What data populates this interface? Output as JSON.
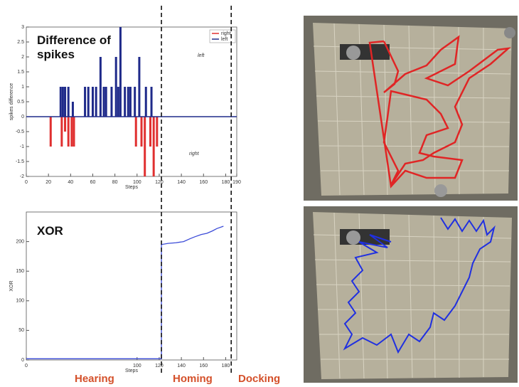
{
  "chart_data": [
    {
      "type": "bar",
      "title": "Difference of spikes",
      "xlabel": "Steps",
      "ylabel": "spikes difference",
      "xlim": [
        0,
        190
      ],
      "xticks": [
        0,
        20,
        40,
        60,
        80,
        100,
        120,
        140,
        160,
        180,
        190
      ],
      "ylim": [
        -2,
        3
      ],
      "yticks": [
        -2,
        -1.5,
        -1,
        -0.5,
        0,
        0.5,
        1,
        1.5,
        2,
        2.5,
        3
      ],
      "annotations": [
        "left",
        "right"
      ],
      "series": [
        {
          "name": "right",
          "color": "#e03030",
          "x": [
            22,
            32,
            35,
            38,
            41,
            43,
            99,
            104,
            107,
            112,
            115,
            118
          ],
          "values": [
            -1,
            -1,
            -0.5,
            -1,
            -1,
            -1,
            -1,
            -1,
            -2,
            -1,
            -2,
            -1
          ]
        },
        {
          "name": "left",
          "color": "#1f2a8a",
          "x": [
            31,
            33,
            35,
            38,
            42,
            53,
            56,
            60,
            63,
            67,
            70,
            72,
            77,
            81,
            83,
            85,
            89,
            92,
            94,
            98,
            102,
            108,
            113
          ],
          "values": [
            1,
            1,
            1,
            1,
            0.5,
            1,
            1,
            1,
            1,
            2,
            1,
            1,
            1,
            2,
            1,
            3,
            1,
            1,
            1,
            1,
            2,
            1,
            1
          ]
        }
      ],
      "phase_boundaries": [
        122,
        185
      ]
    },
    {
      "type": "line",
      "title": "XOR",
      "xlabel": "Steps",
      "ylabel": "XOR",
      "xlim": [
        0,
        190
      ],
      "xticks": [
        0,
        100,
        120,
        140,
        160,
        180
      ],
      "ylim": [
        0,
        250
      ],
      "yticks": [
        0,
        50,
        100,
        150,
        200
      ],
      "x": [
        0,
        122,
        122,
        128,
        135,
        142,
        148,
        152,
        158,
        163,
        168,
        172,
        178
      ],
      "series": [
        {
          "color": "#3b4bd8",
          "values": [
            2,
            2,
            195,
            197,
            198,
            200,
            205,
            208,
            212,
            214,
            218,
            222,
            226
          ]
        }
      ]
    }
  ],
  "phases": [
    "Hearing",
    "Homing",
    "Docking"
  ]
}
